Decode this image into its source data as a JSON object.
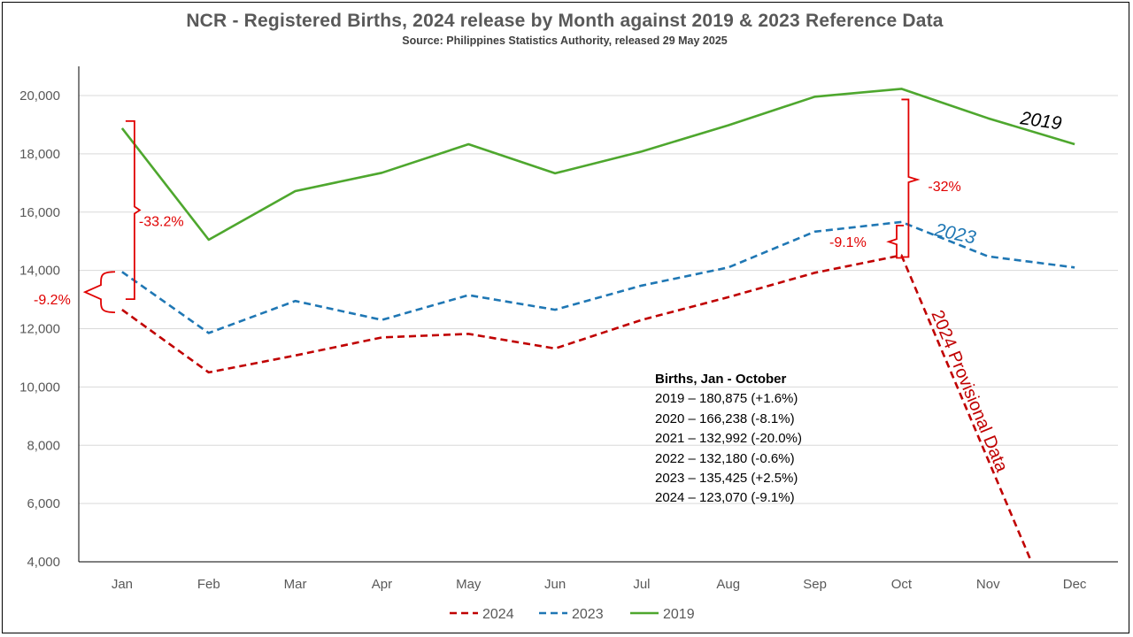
{
  "title": "NCR - Registered  Births, 2024 release by Month against  2019 & 2023 Reference  Data",
  "subtitle": "Source: Philippines Statistics Authority,  released 29 May 2025",
  "chart_data": {
    "type": "line",
    "categories": [
      "Jan",
      "Feb",
      "Mar",
      "Apr",
      "May",
      "Jun",
      "Jul",
      "Aug",
      "Sep",
      "Oct",
      "Nov",
      "Dec"
    ],
    "ylim": [
      4000,
      20000
    ],
    "y_ticks": [
      "4,000",
      "6,000",
      "8,000",
      "10,000",
      "12,000",
      "14,000",
      "16,000",
      "18,000",
      "20,000"
    ],
    "grid": true,
    "legend_position": "bottom",
    "series": [
      {
        "name": "2024",
        "color": "#c00000",
        "dash": "dashed",
        "values": [
          12650,
          10500,
          11080,
          11700,
          11820,
          11320,
          12300,
          13080,
          13920,
          14520,
          8000,
          null
        ],
        "end_at_value": 4000,
        "end_at_fraction": 0.5
      },
      {
        "name": "2023",
        "color": "#1f77b4",
        "dash": "dashed",
        "values": [
          13950,
          11850,
          12950,
          12300,
          13150,
          12650,
          13480,
          14100,
          15330,
          15660,
          14480,
          14100
        ]
      },
      {
        "name": "2019",
        "color": "#4ea72e",
        "dash": "solid",
        "values": [
          18880,
          15050,
          16720,
          17350,
          18330,
          17330,
          18080,
          18980,
          19960,
          20230,
          19220,
          18330
        ]
      }
    ],
    "annotations": {
      "jan_2019": "-33.2%",
      "jan_2023": "-9.2%",
      "oct_2019": "-32%",
      "oct_2023": "-9.1%",
      "label_2019": "2019",
      "label_2023": "2023",
      "provisional": "2024 Provisional Data"
    }
  },
  "births_summary": {
    "heading": "Births, Jan  - October",
    "lines": [
      "2019 – 180,875 (+1.6%)",
      "2020 – 166,238 (-8.1%)",
      "2021 – 132,992 (-20.0%)",
      "2022 – 132,180 (-0.6%)",
      "2023 – 135,425 (+2.5%)",
      "2024 – 123,070 (-9.1%)"
    ]
  }
}
